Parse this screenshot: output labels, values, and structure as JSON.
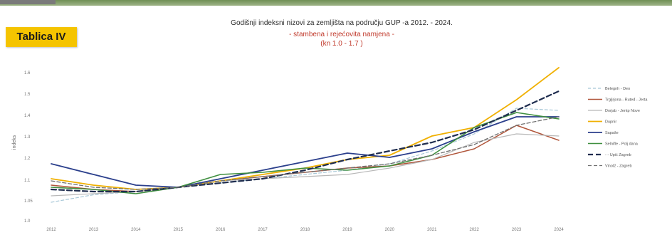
{
  "header": {
    "badge": "Tablica IV"
  },
  "colors": {
    "badge": "#f5c400",
    "title": "#2c2c2c",
    "subtitle": "#c0392b"
  },
  "chart_data": {
    "type": "line",
    "title": "Godišnji indeksni nizovi za zemljišta na području GUP -a 2012. - 2024.",
    "subtitle": "- stambena i rejećovita namjena -",
    "range_note": "(kn 1.0 - 1.7 )",
    "ylabel": "indeks",
    "ylim": [
      1.0,
      1.7
    ],
    "y_ticks": [
      "1.0",
      "1.05",
      "1.1",
      "1.2",
      "1.3",
      "1.4",
      "1.5",
      "1.6"
    ],
    "x": [
      "2012",
      "2013",
      "2014",
      "2015",
      "2016",
      "2017",
      "2018",
      "2019",
      "2020",
      "2021",
      "2022",
      "2023",
      "2024"
    ],
    "legend_position": "right",
    "grid": false,
    "series": [
      {
        "name": "Belegnh - Deo",
        "color": "#a8c8d8",
        "dash": "4,3",
        "width": 1.2,
        "values": [
          1.02,
          1.055,
          1.07,
          1.09,
          1.11,
          1.13,
          1.15,
          1.17,
          1.2,
          1.26,
          1.34,
          1.46,
          1.45
        ]
      },
      {
        "name": "Trgljrjona - Ruteđ - Jerta",
        "color": "#b0553a",
        "dash": "",
        "width": 1.5,
        "values": [
          1.1,
          1.08,
          1.07,
          1.09,
          1.12,
          1.14,
          1.16,
          1.18,
          1.19,
          1.22,
          1.27,
          1.38,
          1.31
        ]
      },
      {
        "name": "Dorjab - Jentp Nove",
        "color": "#b8b8b8",
        "dash": "",
        "width": 1.2,
        "values": [
          1.05,
          1.06,
          1.07,
          1.09,
          1.12,
          1.13,
          1.14,
          1.15,
          1.18,
          1.22,
          1.3,
          1.34,
          1.33
        ]
      },
      {
        "name": "Dupnir",
        "color": "#f0b000",
        "dash": "",
        "width": 1.8,
        "values": [
          1.13,
          1.1,
          1.08,
          1.09,
          1.12,
          1.15,
          1.18,
          1.22,
          1.24,
          1.33,
          1.37,
          1.5,
          1.65
        ]
      },
      {
        "name": "Sapaše",
        "color": "#2b3f8c",
        "dash": "",
        "width": 1.8,
        "values": [
          1.2,
          1.15,
          1.1,
          1.09,
          1.13,
          1.17,
          1.21,
          1.25,
          1.23,
          1.27,
          1.35,
          1.42,
          1.42
        ]
      },
      {
        "name": "Selnifle - Polj dana",
        "color": "#3f8f3f",
        "dash": "",
        "width": 1.6,
        "values": [
          1.09,
          1.08,
          1.06,
          1.09,
          1.15,
          1.16,
          1.18,
          1.17,
          1.19,
          1.24,
          1.37,
          1.44,
          1.41
        ]
      },
      {
        "name": "- - Upić Zagreb",
        "color": "#1f2d4f",
        "dash": "7,4",
        "width": 2.2,
        "values": [
          1.08,
          1.07,
          1.07,
          1.09,
          1.11,
          1.13,
          1.17,
          1.22,
          1.26,
          1.3,
          1.36,
          1.45,
          1.54
        ]
      },
      {
        "name": "Vinol2 - Zagreb",
        "color": "#707070",
        "dash": "5,3",
        "width": 1.3,
        "values": [
          1.12,
          1.09,
          1.08,
          1.09,
          1.12,
          1.14,
          1.16,
          1.18,
          1.2,
          1.24,
          1.29,
          1.38,
          1.42
        ]
      }
    ]
  }
}
